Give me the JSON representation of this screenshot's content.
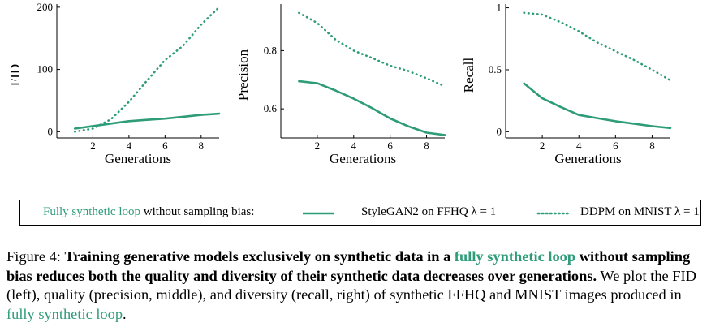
{
  "colors": {
    "series": "#2e9c79",
    "link": "#2e9c79"
  },
  "chart_data": [
    {
      "type": "line",
      "xlabel": "Generations",
      "ylabel": "FID",
      "xlim": [
        0,
        9
      ],
      "ylim": [
        -10,
        205
      ],
      "xticks": [
        2,
        4,
        6,
        8
      ],
      "yticks": [
        0,
        100,
        200
      ],
      "yticklabels": [
        "0",
        "100",
        "200"
      ],
      "series": [
        {
          "name": "StyleGAN2 on FFHQ λ = 1",
          "style": "solid",
          "x": [
            1,
            2,
            3,
            4,
            5,
            6,
            7,
            8,
            9
          ],
          "y": [
            5,
            9,
            13,
            17,
            19,
            21,
            24,
            27,
            29
          ]
        },
        {
          "name": "DDPM on MNIST λ = 1",
          "style": "dotted",
          "x": [
            1,
            2,
            3,
            4,
            5,
            6,
            7,
            8,
            9
          ],
          "y": [
            0,
            5,
            20,
            48,
            82,
            115,
            138,
            172,
            200
          ]
        }
      ]
    },
    {
      "type": "line",
      "xlabel": "Generations",
      "ylabel": "Precision",
      "xlim": [
        0,
        9
      ],
      "ylim": [
        0.5,
        0.96
      ],
      "xticks": [
        2,
        4,
        6,
        8
      ],
      "yticks": [
        0.6,
        0.8
      ],
      "yticklabels": [
        "0.6",
        "0.8"
      ],
      "series": [
        {
          "name": "StyleGAN2 on FFHQ λ = 1",
          "style": "solid",
          "x": [
            1,
            2,
            3,
            4,
            5,
            6,
            7,
            8,
            9
          ],
          "y": [
            0.695,
            0.688,
            0.663,
            0.635,
            0.603,
            0.567,
            0.54,
            0.518,
            0.51
          ]
        },
        {
          "name": "DDPM on MNIST λ = 1",
          "style": "dotted",
          "x": [
            1,
            2,
            3,
            4,
            5,
            6,
            7,
            8,
            9
          ],
          "y": [
            0.93,
            0.895,
            0.838,
            0.8,
            0.775,
            0.748,
            0.73,
            0.705,
            0.678
          ]
        }
      ]
    },
    {
      "type": "line",
      "xlabel": "Generations",
      "ylabel": "Recall",
      "xlim": [
        0,
        9
      ],
      "ylim": [
        -0.05,
        1.03
      ],
      "xticks": [
        2,
        4,
        6,
        8
      ],
      "yticks": [
        0,
        0.5,
        1
      ],
      "yticklabels": [
        "0",
        "0.5",
        "1"
      ],
      "series": [
        {
          "name": "StyleGAN2 on FFHQ λ = 1",
          "style": "solid",
          "x": [
            1,
            2,
            3,
            4,
            5,
            6,
            7,
            8,
            9
          ],
          "y": [
            0.39,
            0.27,
            0.2,
            0.135,
            0.11,
            0.085,
            0.065,
            0.045,
            0.03
          ]
        },
        {
          "name": "DDPM on MNIST λ = 1",
          "style": "dotted",
          "x": [
            1,
            2,
            3,
            4,
            5,
            6,
            7,
            8,
            9
          ],
          "y": [
            0.96,
            0.945,
            0.885,
            0.81,
            0.72,
            0.65,
            0.58,
            0.5,
            0.415
          ]
        }
      ]
    }
  ],
  "legend": {
    "prefix_link": "Fully synthetic loop",
    "prefix_rest": "without sampling bias:",
    "entry1": "StyleGAN2 on FFHQ λ = 1",
    "entry2": "DDPM on MNIST λ = 1"
  },
  "caption": {
    "label": "Figure 4:",
    "bold1": "Training generative models exclusively on synthetic data in a",
    "link1": "fully synthetic loop",
    "bold2": "without sampling bias reduces both the quality and diversity of their synthetic data decreases over generations.",
    "text": "We plot the FID (left), quality (precision, middle), and diversity (recall, right) of synthetic FFHQ and MNIST images produced in",
    "link2": "fully synthetic loop",
    "end": "."
  }
}
